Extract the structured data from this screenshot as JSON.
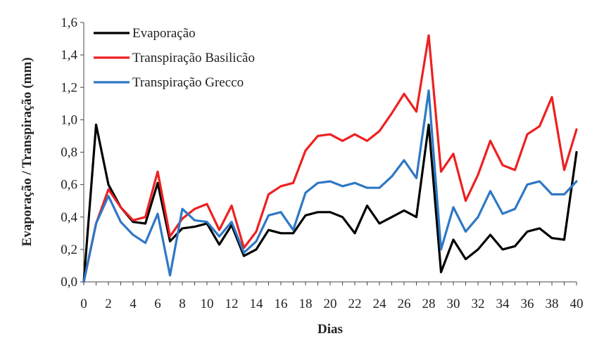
{
  "chart_data": {
    "type": "line",
    "xlabel": "Dias",
    "ylabel": "Evaporação / Transpiração (mm)",
    "xlim": [
      0,
      40
    ],
    "ylim": [
      0,
      1.6
    ],
    "x_ticks": [
      "0",
      "2",
      "4",
      "6",
      "8",
      "10",
      "12",
      "14",
      "16",
      "18",
      "20",
      "22",
      "24",
      "26",
      "28",
      "30",
      "32",
      "34",
      "36",
      "38",
      "40"
    ],
    "y_ticks": [
      "0,0",
      "0,2",
      "0,4",
      "0,6",
      "0,8",
      "1,0",
      "1,2",
      "1,4",
      "1,6"
    ],
    "legend_position": "top-left",
    "x": [
      0,
      1,
      2,
      3,
      4,
      5,
      6,
      7,
      8,
      9,
      10,
      11,
      12,
      13,
      14,
      15,
      16,
      17,
      18,
      19,
      20,
      21,
      22,
      23,
      24,
      25,
      26,
      27,
      28,
      29,
      30,
      31,
      32,
      33,
      34,
      35,
      36,
      37,
      38,
      39,
      40
    ],
    "series": [
      {
        "name": "Evaporação",
        "color": "#000000",
        "values": [
          0.0,
          0.97,
          0.6,
          0.46,
          0.37,
          0.36,
          0.61,
          0.25,
          0.33,
          0.34,
          0.36,
          0.23,
          0.35,
          0.16,
          0.2,
          0.32,
          0.3,
          0.3,
          0.41,
          0.43,
          0.43,
          0.4,
          0.3,
          0.47,
          0.36,
          0.4,
          0.44,
          0.4,
          0.97,
          0.06,
          0.26,
          0.14,
          0.2,
          0.29,
          0.2,
          0.22,
          0.31,
          0.33,
          0.27,
          0.26,
          0.8
        ]
      },
      {
        "name": "Transpiração Basilicão",
        "color": "#ee2020",
        "values": [
          0.0,
          0.36,
          0.57,
          0.46,
          0.38,
          0.4,
          0.68,
          0.28,
          0.39,
          0.45,
          0.48,
          0.32,
          0.47,
          0.21,
          0.31,
          0.54,
          0.59,
          0.61,
          0.81,
          0.9,
          0.91,
          0.87,
          0.91,
          0.87,
          0.93,
          1.04,
          1.16,
          1.05,
          1.52,
          0.68,
          0.79,
          0.5,
          0.66,
          0.87,
          0.72,
          0.69,
          0.91,
          0.96,
          1.14,
          0.69,
          0.94
        ]
      },
      {
        "name": "Transpiração Grecco",
        "color": "#2e78c4",
        "values": [
          0.0,
          0.36,
          0.53,
          0.37,
          0.29,
          0.24,
          0.42,
          0.04,
          0.45,
          0.38,
          0.37,
          0.28,
          0.37,
          0.18,
          0.25,
          0.41,
          0.43,
          0.32,
          0.55,
          0.61,
          0.62,
          0.59,
          0.61,
          0.58,
          0.58,
          0.65,
          0.75,
          0.64,
          1.18,
          0.2,
          0.46,
          0.31,
          0.4,
          0.56,
          0.42,
          0.45,
          0.6,
          0.62,
          0.54,
          0.54,
          0.62
        ]
      }
    ]
  }
}
